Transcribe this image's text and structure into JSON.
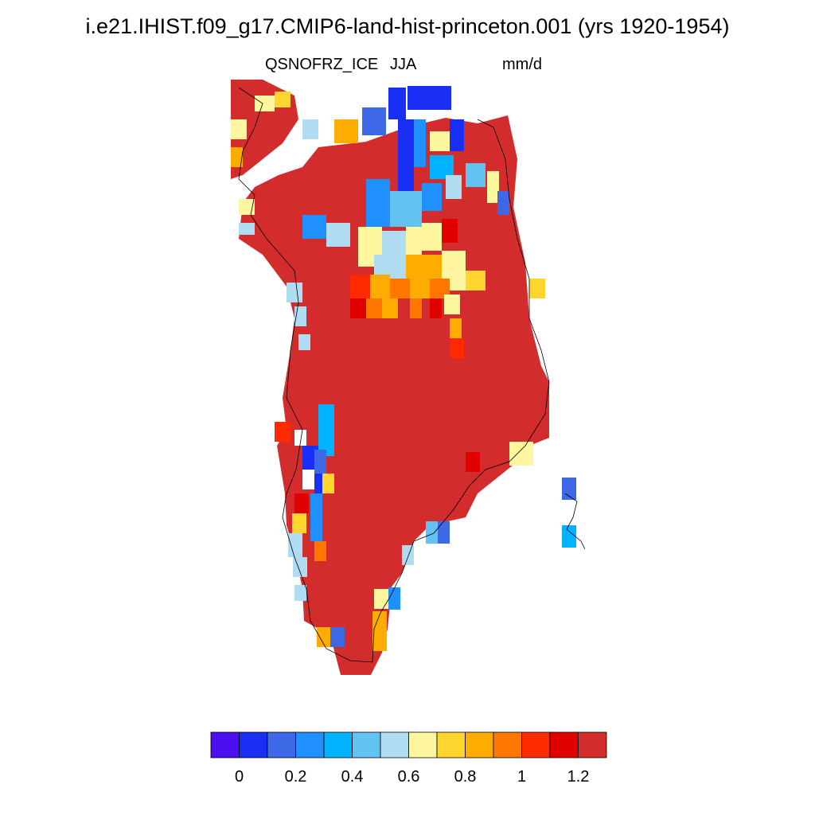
{
  "header": {
    "title": "i.e21.IHIST.f09_g17.CMIP6-land-hist-princeton.001 (yrs 1920-1954)",
    "variable": "QSNOFRZ_ICE",
    "season": "JJA",
    "units": "mm/d"
  },
  "map": {
    "region": "Greenland",
    "field": "QSNOFRZ_ICE",
    "dominant_value": "> 1.2"
  },
  "colorbar": {
    "colors": [
      "#4b0ff2",
      "#1a2ff5",
      "#3d68e6",
      "#2090ff",
      "#00b2ff",
      "#62c3f2",
      "#b0dcf2",
      "#fff6a0",
      "#ffd630",
      "#ffac00",
      "#ff7700",
      "#ff2a00",
      "#e10000",
      "#d22c2c"
    ],
    "tick_labels": [
      "0",
      "0.2",
      "0.4",
      "0.6",
      "0.8",
      "1",
      "1.2"
    ]
  }
}
